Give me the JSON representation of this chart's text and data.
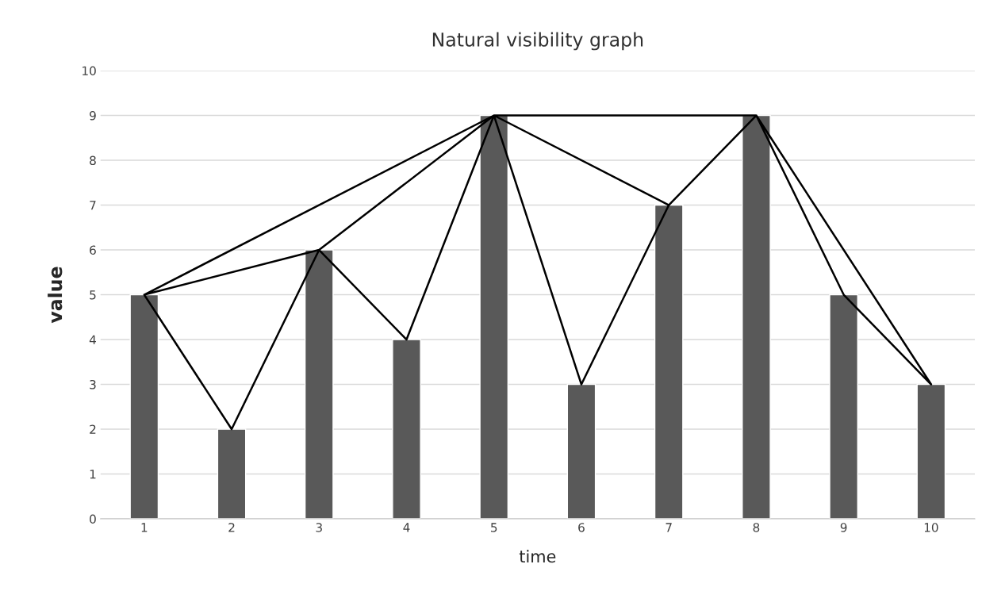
{
  "chart_data": {
    "type": "bar",
    "title": "Natural visibility graph",
    "xlabel": "time",
    "ylabel": "value",
    "categories": [
      "1",
      "2",
      "3",
      "4",
      "5",
      "6",
      "7",
      "8",
      "9",
      "10"
    ],
    "series": [
      {
        "color": "#595959",
        "values": [
          5,
          2,
          6,
          4,
          9,
          3,
          7,
          9,
          5,
          3
        ]
      },
      {
        "type": "line",
        "color": "#000000",
        "x": [
          "1",
          "2",
          "3",
          "4",
          "5",
          "6",
          "7",
          "8",
          "9",
          "10",
          "10",
          "1",
          "3",
          "5",
          "5",
          "1",
          "5",
          "5",
          "7",
          "5",
          "8",
          "10"
        ],
        "values": [
          5,
          2,
          6,
          4,
          9,
          3,
          7,
          9,
          5,
          3,
          null,
          5,
          6,
          9,
          null,
          5,
          9,
          null,
          7,
          9,
          9,
          3
        ]
      }
    ],
    "ylim": [
      0,
      10
    ],
    "yticks": [
      0,
      1,
      2,
      3,
      4,
      5,
      6,
      7,
      8,
      9,
      10
    ],
    "grid": "y"
  }
}
